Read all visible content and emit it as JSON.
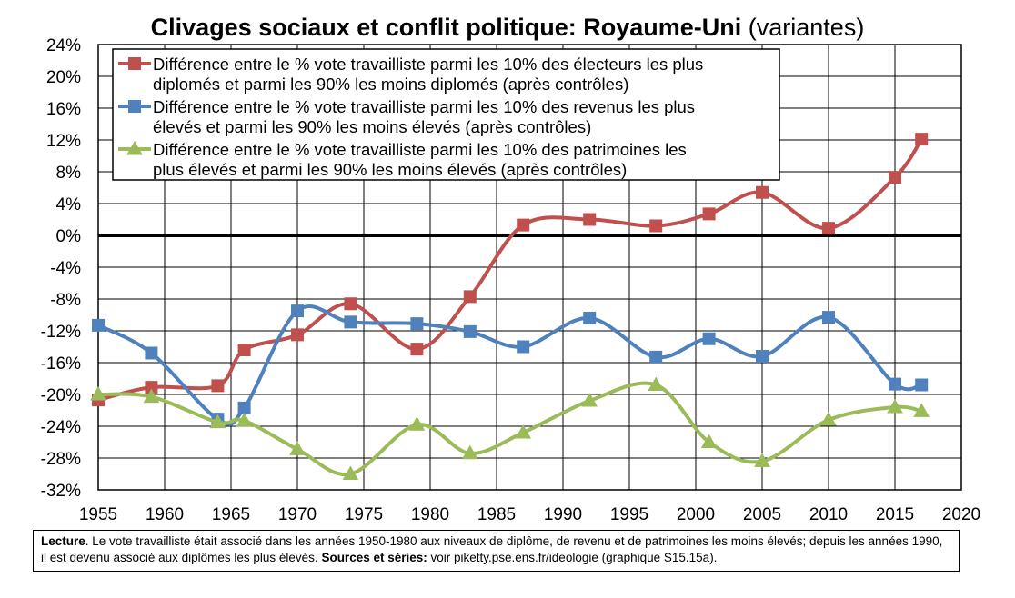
{
  "title": {
    "main": "Clivages sociaux et conflit politique: Royaume-Uni",
    "sub": "(variantes)"
  },
  "chart_data": {
    "type": "line",
    "title": "Clivages sociaux et conflit politique: Royaume-Uni (variantes)",
    "xlim": [
      1955,
      2020
    ],
    "x_ticks": [
      1955,
      1960,
      1965,
      1970,
      1975,
      1980,
      1985,
      1990,
      1995,
      2000,
      2005,
      2010,
      2015,
      2020
    ],
    "ylim": [
      -32,
      24
    ],
    "y_ticks": [
      24,
      20,
      16,
      12,
      8,
      4,
      0,
      -4,
      -8,
      -12,
      -16,
      -20,
      -24,
      -28,
      -32
    ],
    "y_unit": "%",
    "grid": true,
    "legend_position": "top-left",
    "series": [
      {
        "name_line1": "Différence entre le % vote travailliste parmi les 10% des électeurs les plus",
        "name_line2": "diplomés et parmi les 90% les moins diplomés (après contrôles)",
        "color": "#c0504d",
        "marker": "square",
        "points": [
          [
            1955,
            -20.7
          ],
          [
            1959,
            -19.1
          ],
          [
            1964,
            -18.9
          ],
          [
            1966,
            -14.4
          ],
          [
            1970,
            -12.5
          ],
          [
            1974,
            -8.6
          ],
          [
            1979,
            -14.3
          ],
          [
            1983,
            -7.7
          ],
          [
            1987,
            1.3
          ],
          [
            1992,
            2.0
          ],
          [
            1997,
            1.2
          ],
          [
            2001,
            2.7
          ],
          [
            2005,
            5.4
          ],
          [
            2010,
            0.9
          ],
          [
            2015,
            7.3
          ],
          [
            2017,
            12.1
          ]
        ]
      },
      {
        "name_line1": "Différence entre le % vote travailliste parmi les 10% des revenus les plus",
        "name_line2": "élevés et parmi les 90% les moins élevés (après contrôles)",
        "color": "#4f81bd",
        "marker": "square",
        "points": [
          [
            1955,
            -11.3
          ],
          [
            1959,
            -14.8
          ],
          [
            1964,
            -23.1
          ],
          [
            1966,
            -21.7
          ],
          [
            1970,
            -9.5
          ],
          [
            1974,
            -10.9
          ],
          [
            1979,
            -11.1
          ],
          [
            1983,
            -12.1
          ],
          [
            1987,
            -14.0
          ],
          [
            1992,
            -10.4
          ],
          [
            1997,
            -15.3
          ],
          [
            2001,
            -13.0
          ],
          [
            2005,
            -15.2
          ],
          [
            2010,
            -10.3
          ],
          [
            2015,
            -18.7
          ],
          [
            2017,
            -18.8
          ]
        ]
      },
      {
        "name_line1": "Différence entre le % vote travailliste parmi les 10% des patrimoines les",
        "name_line2": "plus élevés et parmi les 90% les moins élevés (après contrôles)",
        "color": "#9bbb59",
        "marker": "triangle",
        "points": [
          [
            1955,
            -20.0
          ],
          [
            1959,
            -20.3
          ],
          [
            1964,
            -23.5
          ],
          [
            1966,
            -23.3
          ],
          [
            1970,
            -26.9
          ],
          [
            1974,
            -30.0
          ],
          [
            1979,
            -23.8
          ],
          [
            1983,
            -27.4
          ],
          [
            1987,
            -24.8
          ],
          [
            1992,
            -20.8
          ],
          [
            1997,
            -18.8
          ],
          [
            2001,
            -26.0
          ],
          [
            2005,
            -28.4
          ],
          [
            2010,
            -23.2
          ],
          [
            2015,
            -21.6
          ],
          [
            2017,
            -22.1
          ]
        ]
      }
    ]
  },
  "note": {
    "lecture_label": "Lecture",
    "lecture_text": ". Le vote travailliste était associé dans les années 1950-1980 aux niveaux de diplôme, de revenu et de patrimoines les moins élevés; depuis les années 1990, il est devenu associé aux diplômes les plus élevés.",
    "sources_label": "Sources et séries:",
    "sources_text": " voir piketty.pse.ens.fr/ideologie (graphique S15.15a)."
  }
}
